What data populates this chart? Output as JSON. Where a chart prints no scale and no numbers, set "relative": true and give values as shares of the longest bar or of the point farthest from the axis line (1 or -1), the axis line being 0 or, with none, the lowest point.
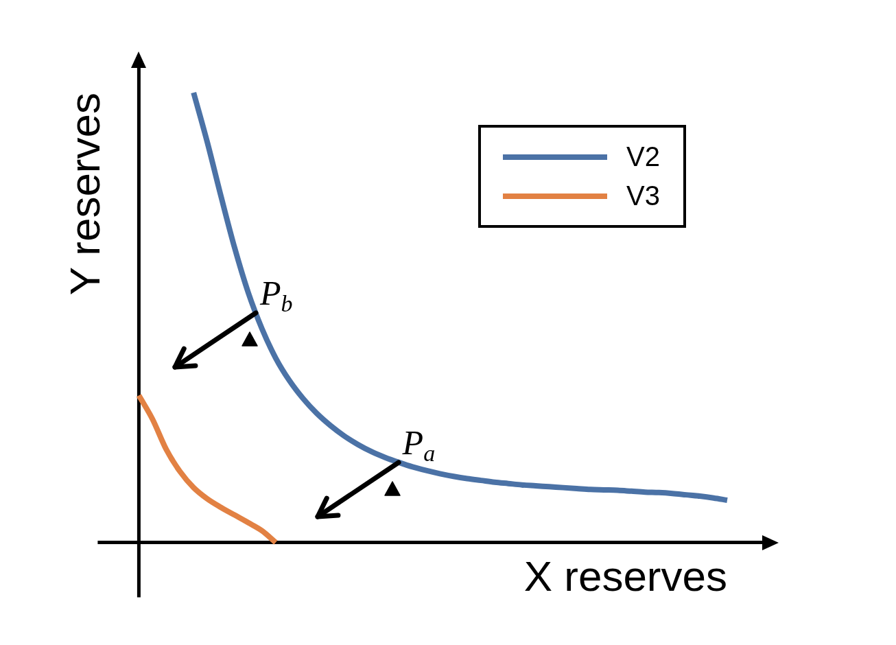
{
  "chart_data": {
    "type": "line",
    "xlabel": "X reserves",
    "ylabel": "Y reserves",
    "relative": true,
    "legend": "top right",
    "marker": "none",
    "categories": [
      null,
      null,
      null,
      null,
      null,
      null,
      null,
      null,
      null,
      null,
      null,
      null,
      null,
      null,
      null,
      null,
      null,
      null,
      null,
      null,
      null,
      null,
      null,
      null,
      null,
      null,
      null,
      null,
      null,
      null,
      null,
      null,
      null,
      null,
      null,
      null,
      null,
      null,
      null,
      null,
      null,
      null,
      null,
      null
    ],
    "series": [
      {
        "name": "V2",
        "color": "#4b72a6",
        "values": [
          null,
          null,
          null,
          null,
          1.0,
          0.89,
          0.77,
          0.655,
          0.555,
          0.475,
          0.41,
          0.36,
          0.32,
          0.287,
          0.26,
          0.237,
          0.218,
          0.202,
          0.189,
          0.178,
          0.168,
          0.16,
          0.153,
          0.147,
          0.142,
          0.138,
          0.134,
          0.131,
          0.128,
          0.126,
          0.124,
          0.122,
          0.12,
          0.118,
          0.117,
          0.116,
          0.114,
          0.112,
          0.111,
          0.109,
          0.106,
          0.103,
          0.099,
          0.094
        ]
      },
      {
        "name": "V3",
        "color": "#e28143",
        "values": [
          0.327,
          0.274,
          0.207,
          0.158,
          0.122,
          0.097,
          0.078,
          0.061,
          0.044,
          0.026,
          0,
          null,
          null,
          null,
          null,
          null,
          null,
          null,
          null,
          null,
          null,
          null,
          null,
          null,
          null,
          null,
          null,
          null,
          null,
          null,
          null,
          null,
          null,
          null,
          null,
          null,
          null,
          null,
          null,
          null,
          null,
          null,
          null,
          null
        ]
      }
    ],
    "annotations": [
      "P$_{b}$",
      "P$_{a}$"
    ]
  }
}
